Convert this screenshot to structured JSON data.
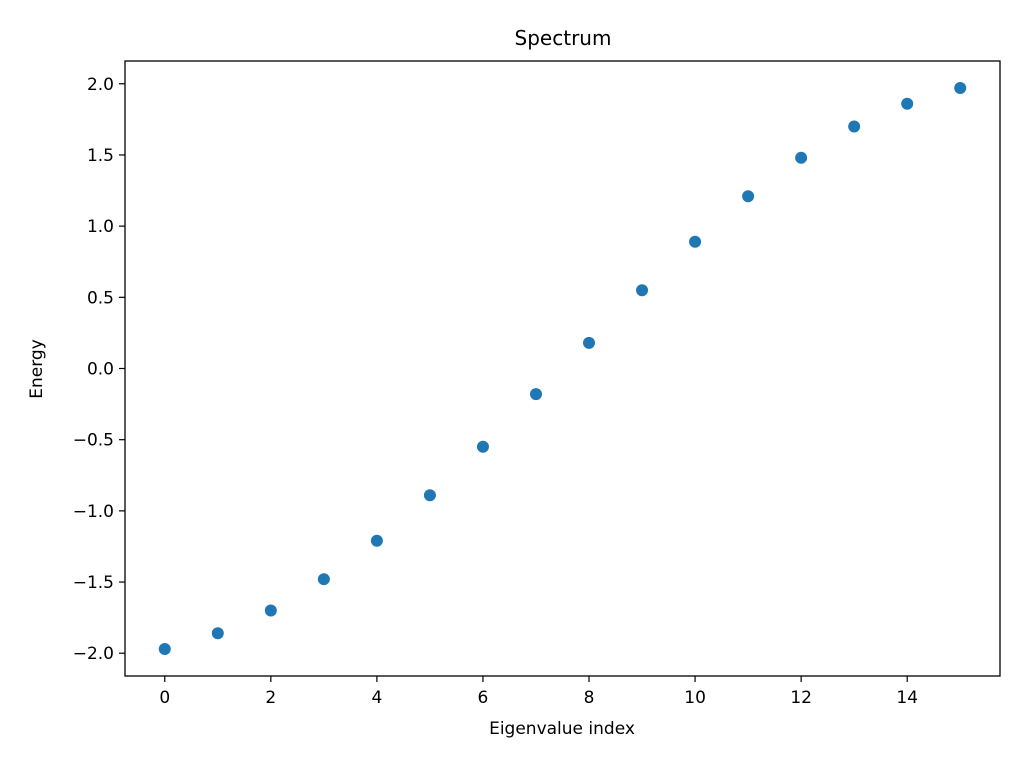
{
  "chart_data": {
    "type": "scatter",
    "title": "Spectrum",
    "xlabel": "Eigenvalue index",
    "ylabel": "Energy",
    "xlim": [
      -0.75,
      15.75
    ],
    "ylim": [
      -2.16,
      2.16
    ],
    "grid": false,
    "legend": "none",
    "marker_color": "#1f77b4",
    "xticks": [
      0,
      2,
      4,
      6,
      8,
      10,
      12,
      14
    ],
    "xtick_labels": [
      "0",
      "2",
      "4",
      "6",
      "8",
      "10",
      "12",
      "14"
    ],
    "yticks": [
      -2.0,
      -1.5,
      -1.0,
      -0.5,
      0.0,
      0.5,
      1.0,
      1.5,
      2.0
    ],
    "ytick_labels": [
      "−2.0",
      "−1.5",
      "−1.0",
      "−0.5",
      "0.0",
      "0.5",
      "1.0",
      "1.5",
      "2.0"
    ],
    "series": [
      {
        "x": [
          0,
          1,
          2,
          3,
          4,
          5,
          6,
          7,
          8,
          9,
          10,
          11,
          12,
          13,
          14,
          15
        ],
        "y": [
          -1.97,
          -1.86,
          -1.7,
          -1.48,
          -1.21,
          -0.89,
          -0.55,
          -0.18,
          0.18,
          0.55,
          0.89,
          1.21,
          1.48,
          1.7,
          1.86,
          1.97
        ]
      }
    ]
  }
}
